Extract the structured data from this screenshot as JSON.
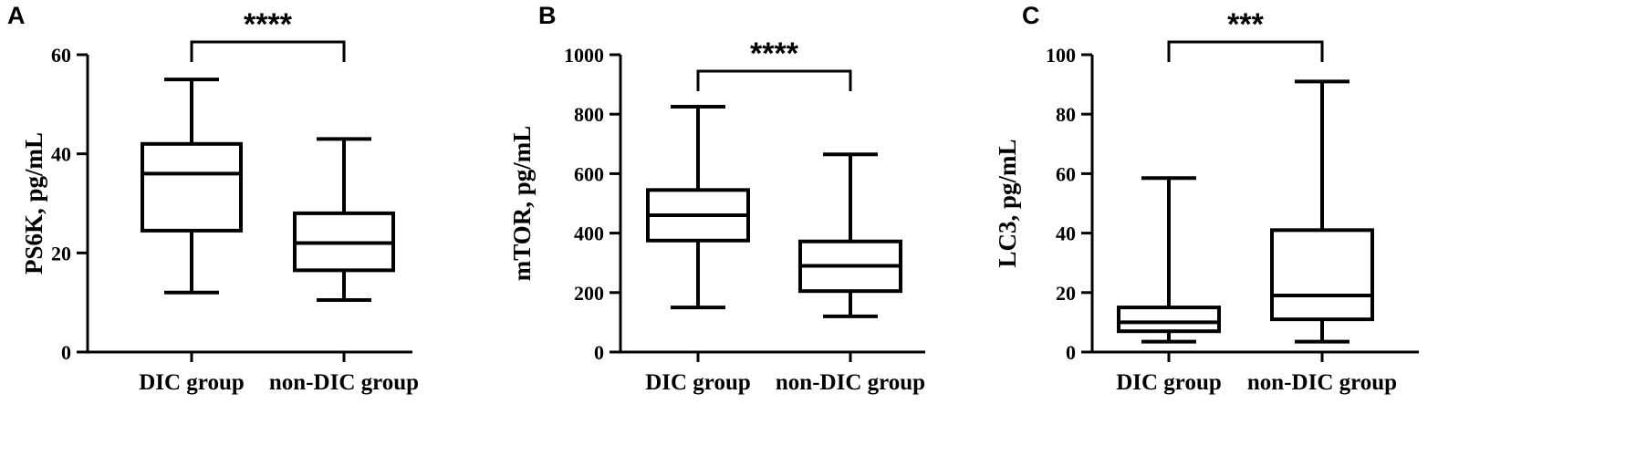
{
  "chart_data": [
    {
      "type": "box",
      "panel": "A",
      "ylabel": "PS6K, pg/mL",
      "ylim": [
        0,
        60
      ],
      "yticks": [
        0,
        20,
        40,
        60
      ],
      "categories": [
        "DIC group",
        "non-DIC group"
      ],
      "boxes": [
        {
          "name": "DIC group",
          "min": 12,
          "q1": 24.5,
          "median": 36,
          "q3": 42,
          "max": 55
        },
        {
          "name": "non-DIC group",
          "min": 10.5,
          "q1": 16.5,
          "median": 22,
          "q3": 28,
          "max": 43
        }
      ],
      "significance": "****"
    },
    {
      "type": "box",
      "panel": "B",
      "ylabel": "mTOR, pg/mL",
      "ylim": [
        0,
        1000
      ],
      "yticks": [
        0,
        200,
        400,
        600,
        800,
        1000
      ],
      "categories": [
        "DIC group",
        "non-DIC group"
      ],
      "boxes": [
        {
          "name": "DIC group",
          "min": 150,
          "q1": 375,
          "median": 460,
          "q3": 545,
          "max": 825
        },
        {
          "name": "non-DIC group",
          "min": 120,
          "q1": 205,
          "median": 290,
          "q3": 372,
          "max": 665
        }
      ],
      "significance": "****"
    },
    {
      "type": "box",
      "panel": "C",
      "ylabel": "LC3, pg/mL",
      "ylim": [
        0,
        100
      ],
      "yticks": [
        0,
        20,
        40,
        60,
        80,
        100
      ],
      "categories": [
        "DIC group",
        "non-DIC group"
      ],
      "boxes": [
        {
          "name": "DIC group",
          "min": 3.5,
          "q1": 7,
          "median": 10,
          "q3": 15,
          "max": 58.5
        },
        {
          "name": "non-DIC group",
          "min": 3.5,
          "q1": 11,
          "median": 19,
          "q3": 41,
          "max": 91
        }
      ],
      "significance": "***"
    }
  ]
}
